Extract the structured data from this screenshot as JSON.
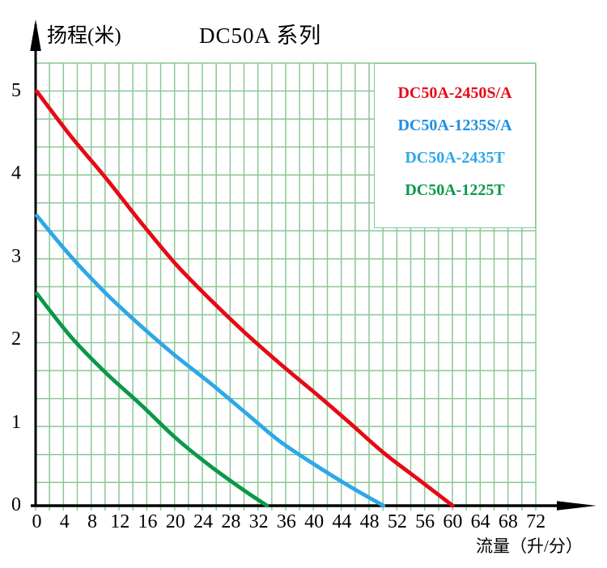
{
  "title": "DC50A 系列",
  "y_axis_label": "扬程(米)",
  "x_axis_label": "流量（升/分）",
  "colors": {
    "grid": "#8ac795",
    "axis": "#000000",
    "red": "#e60a14",
    "blue_dark": "#1d8fe0",
    "blue_light": "#2ea7e8",
    "green": "#0b9848"
  },
  "legend": {
    "items": [
      {
        "label": "DC50A-2450S/A",
        "color": "#e60a14"
      },
      {
        "label": "DC50A-1235S/A",
        "color": "#1d8fe0"
      },
      {
        "label": "DC50A-2435T",
        "color": "#2ea7e8"
      },
      {
        "label": "DC50A-1225T",
        "color": "#0b9848"
      }
    ]
  },
  "chart_data": {
    "type": "line",
    "title": "DC50A 系列",
    "xlabel": "流量（升/分）",
    "ylabel": "扬程(米)",
    "xlim": [
      0,
      72
    ],
    "ylim": [
      0,
      5
    ],
    "x_ticks": [
      0,
      4,
      8,
      12,
      16,
      20,
      24,
      28,
      32,
      36,
      40,
      44,
      48,
      52,
      56,
      60,
      64,
      68,
      72
    ],
    "y_ticks": [
      0,
      1,
      2,
      3,
      4,
      5
    ],
    "grid": "light-green minor grid, legend box top-right, no markers",
    "legend_position": "top-right inside plot",
    "series": [
      {
        "name": "DC50A-2450S/A",
        "color": "#e60a14",
        "points": [
          [
            0,
            5.0
          ],
          [
            5,
            4.45
          ],
          [
            10,
            3.95
          ],
          [
            15,
            3.42
          ],
          [
            20,
            2.92
          ],
          [
            25,
            2.49
          ],
          [
            30,
            2.09
          ],
          [
            35,
            1.72
          ],
          [
            40,
            1.37
          ],
          [
            45,
            1.01
          ],
          [
            50,
            0.64
          ],
          [
            55,
            0.32
          ],
          [
            60,
            0
          ]
        ]
      },
      {
        "name": "DC50A-1235S/A / DC50A-2435T",
        "color": "#2ea7e8",
        "points": [
          [
            0,
            3.5
          ],
          [
            5,
            3.0
          ],
          [
            10,
            2.56
          ],
          [
            15,
            2.17
          ],
          [
            20,
            1.81
          ],
          [
            25,
            1.48
          ],
          [
            30,
            1.13
          ],
          [
            35,
            0.78
          ],
          [
            40,
            0.5
          ],
          [
            45,
            0.24
          ],
          [
            50,
            0
          ]
        ]
      },
      {
        "name": "DC50A-1225T",
        "color": "#0b9848",
        "points": [
          [
            0,
            2.56
          ],
          [
            5,
            2.03
          ],
          [
            10,
            1.6
          ],
          [
            15,
            1.22
          ],
          [
            20,
            0.82
          ],
          [
            25,
            0.48
          ],
          [
            30,
            0.18
          ],
          [
            33.2,
            0
          ]
        ]
      }
    ]
  }
}
